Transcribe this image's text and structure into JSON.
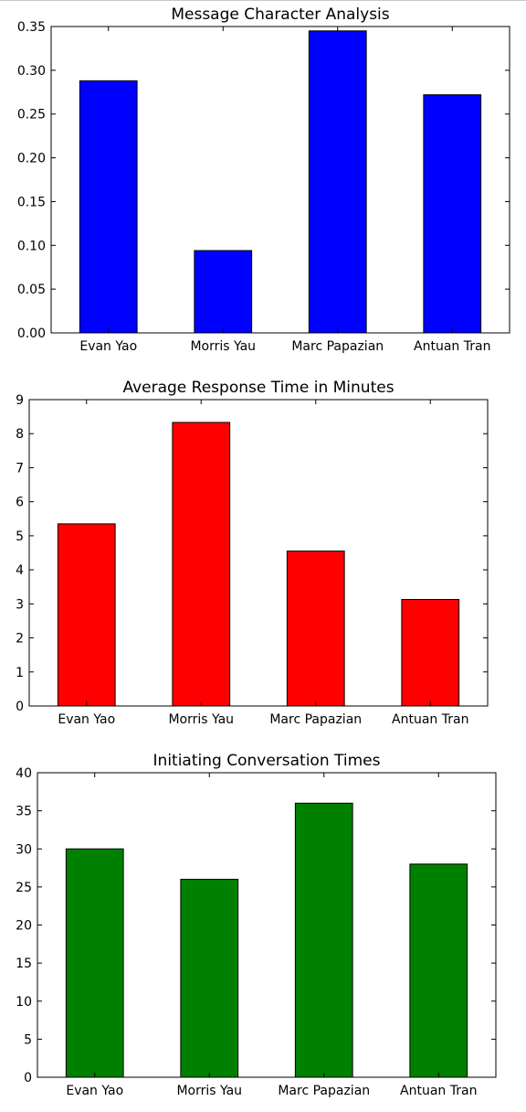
{
  "chart_data": [
    {
      "type": "bar",
      "title": "Message Character Analysis",
      "categories": [
        "Evan Yao",
        "Morris Yau",
        "Marc Papazian",
        "Antuan Tran"
      ],
      "values": [
        0.288,
        0.094,
        0.345,
        0.272
      ],
      "color": "#0000ff",
      "ylim": [
        0,
        0.35
      ],
      "yticks": [
        "0.00",
        "0.05",
        "0.10",
        "0.15",
        "0.20",
        "0.25",
        "0.30",
        "0.35"
      ],
      "xlabel": "",
      "ylabel": "",
      "grid": false
    },
    {
      "type": "bar",
      "title": "Average Response Time in Minutes",
      "categories": [
        "Evan Yao",
        "Morris Yau",
        "Marc Papazian",
        "Antuan Tran"
      ],
      "values": [
        5.35,
        8.33,
        4.55,
        3.13
      ],
      "color": "#ff0000",
      "ylim": [
        0,
        9
      ],
      "yticks": [
        "0",
        "1",
        "2",
        "3",
        "4",
        "5",
        "6",
        "7",
        "8",
        "9"
      ],
      "xlabel": "",
      "ylabel": "",
      "grid": false
    },
    {
      "type": "bar",
      "title": "Initiating Conversation Times",
      "categories": [
        "Evan Yao",
        "Morris Yau",
        "Marc Papazian",
        "Antuan Tran"
      ],
      "values": [
        30,
        26,
        36,
        28
      ],
      "color": "#008000",
      "ylim": [
        0,
        40
      ],
      "yticks": [
        "0",
        "5",
        "10",
        "15",
        "20",
        "25",
        "30",
        "35",
        "40"
      ],
      "xlabel": "",
      "ylabel": "",
      "grid": false
    }
  ]
}
